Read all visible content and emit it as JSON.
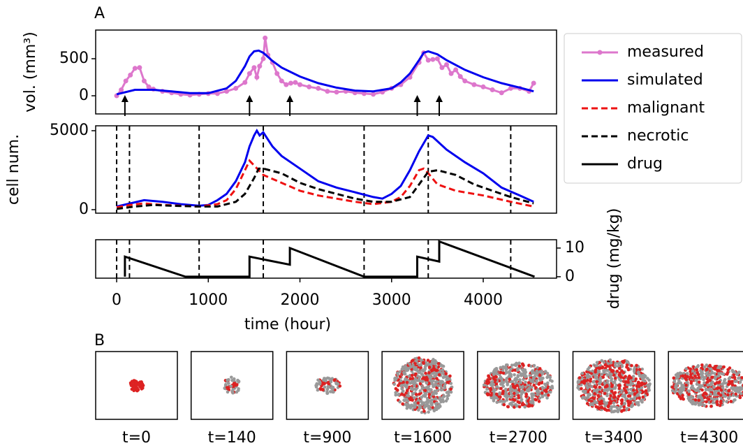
{
  "chart_data": [
    {
      "type": "line",
      "panel_label": "A",
      "ylabel": "vol. (mm³)",
      "xlim": [
        -229,
        4800
      ],
      "ylim": [
        -245,
        887
      ],
      "yticks": [
        0,
        500
      ],
      "series": [
        {
          "name": "measured",
          "color": "#dd77cc",
          "markers": true,
          "dash": false,
          "x": [
            0,
            50,
            100,
            150,
            200,
            250,
            300,
            350,
            400,
            500,
            600,
            700,
            800,
            900,
            1000,
            1100,
            1200,
            1300,
            1400,
            1450,
            1500,
            1530,
            1560,
            1600,
            1620,
            1650,
            1700,
            1750,
            1800,
            1850,
            1900,
            1950,
            2000,
            2100,
            2200,
            2300,
            2400,
            2500,
            2600,
            2700,
            2800,
            2900,
            3000,
            3100,
            3200,
            3300,
            3350,
            3400,
            3450,
            3500,
            3550,
            3600,
            3650,
            3700,
            3750,
            3800,
            3900,
            4000,
            4100,
            4200,
            4300,
            4400,
            4500,
            4550
          ],
          "values": [
            0,
            80,
            200,
            280,
            370,
            380,
            200,
            120,
            90,
            60,
            40,
            20,
            10,
            20,
            30,
            30,
            60,
            100,
            180,
            300,
            380,
            250,
            400,
            500,
            780,
            550,
            450,
            300,
            200,
            150,
            170,
            180,
            150,
            120,
            100,
            60,
            50,
            60,
            40,
            30,
            20,
            50,
            100,
            150,
            250,
            450,
            580,
            480,
            490,
            500,
            380,
            420,
            300,
            350,
            260,
            200,
            150,
            120,
            80,
            40,
            100,
            100,
            60,
            170
          ]
        },
        {
          "name": "simulated",
          "color": "#0000ee",
          "markers": false,
          "dash": false,
          "x": [
            0,
            200,
            400,
            600,
            800,
            1000,
            1200,
            1300,
            1400,
            1450,
            1500,
            1550,
            1600,
            1700,
            1800,
            2000,
            2200,
            2400,
            2600,
            2800,
            3000,
            3100,
            3200,
            3300,
            3350,
            3400,
            3500,
            3600,
            3800,
            4000,
            4200,
            4400,
            4550
          ],
          "values": [
            20,
            80,
            80,
            60,
            35,
            35,
            100,
            200,
            400,
            530,
            600,
            610,
            580,
            470,
            380,
            260,
            170,
            110,
            70,
            60,
            100,
            180,
            300,
            480,
            580,
            600,
            560,
            480,
            350,
            250,
            170,
            110,
            60
          ]
        }
      ],
      "arrows": [
        90,
        1450,
        1890,
        3280,
        3520
      ]
    },
    {
      "type": "line",
      "ylabel": "cell num.",
      "xlim": [
        -229,
        4800
      ],
      "ylim": [
        -221,
        5310
      ],
      "yticks": [
        0,
        5000
      ],
      "vlines": [
        0,
        140,
        900,
        1600,
        2700,
        3400,
        4300
      ],
      "series": [
        {
          "name": "simulated",
          "color": "#0000ee",
          "dash": false,
          "x": [
            0,
            150,
            300,
            500,
            700,
            900,
            1000,
            1100,
            1200,
            1300,
            1400,
            1450,
            1500,
            1530,
            1560,
            1600,
            1700,
            1800,
            2000,
            2200,
            2400,
            2600,
            2800,
            2900,
            3000,
            3100,
            3200,
            3300,
            3400,
            3450,
            3600,
            3800,
            4000,
            4200,
            4400,
            4550
          ],
          "values": [
            200,
            400,
            600,
            500,
            350,
            250,
            300,
            600,
            1000,
            1800,
            3000,
            4000,
            4700,
            5000,
            4700,
            4900,
            4000,
            3400,
            2600,
            1800,
            1400,
            1100,
            800,
            700,
            1000,
            1500,
            2500,
            3700,
            4700,
            4600,
            3800,
            3000,
            2300,
            1400,
            900,
            500
          ]
        },
        {
          "name": "malignant",
          "color": "#ee1111",
          "dash": true,
          "x": [
            0,
            150,
            300,
            500,
            900,
            1100,
            1200,
            1300,
            1400,
            1450,
            1500,
            1600,
            1800,
            2000,
            2200,
            2400,
            2600,
            2800,
            3000,
            3100,
            3200,
            3300,
            3350,
            3400,
            3500,
            3700,
            4000,
            4300,
            4550
          ],
          "values": [
            150,
            300,
            400,
            300,
            200,
            350,
            600,
            1300,
            2500,
            3100,
            2800,
            2200,
            1700,
            1200,
            900,
            700,
            500,
            350,
            500,
            800,
            1500,
            2500,
            2600,
            2300,
            1600,
            1200,
            900,
            500,
            200
          ]
        },
        {
          "name": "necrotic",
          "color": "#000000",
          "dash": true,
          "x": [
            0,
            200,
            400,
            600,
            900,
            1100,
            1300,
            1400,
            1500,
            1550,
            1600,
            1800,
            2000,
            2200,
            2400,
            2600,
            2800,
            3000,
            3200,
            3350,
            3400,
            3500,
            3700,
            3900,
            4100,
            4300,
            4550
          ],
          "values": [
            50,
            200,
            300,
            250,
            200,
            200,
            500,
            1000,
            2000,
            2600,
            2600,
            2300,
            1700,
            1300,
            1000,
            700,
            500,
            500,
            800,
            2000,
            2400,
            2500,
            2200,
            1600,
            1200,
            800,
            400
          ]
        }
      ]
    },
    {
      "type": "line",
      "xlabel": "time (hour)",
      "y2label": "drug (mg/kg)",
      "xlim": [
        -229,
        4800
      ],
      "xticks": [
        0,
        1000,
        2000,
        3000,
        4000
      ],
      "y2lim": [
        -0.5,
        12.9
      ],
      "y2ticks": [
        0,
        10
      ],
      "vlines": [
        0,
        140,
        900,
        1600,
        2700,
        3400,
        4300
      ],
      "series": [
        {
          "name": "drug",
          "color": "#000000",
          "dash": false,
          "axis": "y2",
          "x": [
            90,
            90,
            750,
            1450,
            1450,
            1890,
            1890,
            2700,
            3280,
            3280,
            3520,
            3520,
            4560
          ],
          "values": [
            0,
            7,
            0,
            0,
            7,
            4.2,
            10,
            0,
            0,
            7,
            5.3,
            12.3,
            0
          ]
        }
      ]
    },
    {
      "type": "snapshots",
      "panel_label": "B",
      "labels": [
        "t=0",
        "t=140",
        "t=900",
        "t=1600",
        "t=2700",
        "t=3400",
        "t=4300"
      ]
    }
  ]
}
